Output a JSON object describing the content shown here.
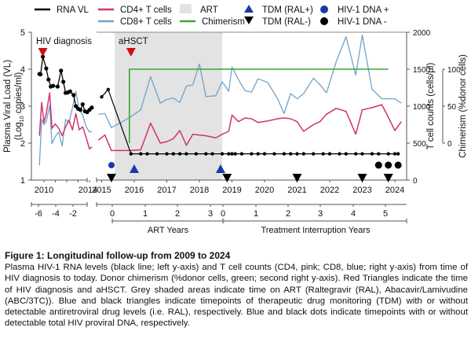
{
  "chart_data": {
    "type": "line",
    "title": "",
    "legend": {
      "placement": "top",
      "items": [
        {
          "label": "RNA VL",
          "kind": "line",
          "color": "#000000"
        },
        {
          "label": "CD4+ T cells",
          "kind": "line",
          "color": "#d0336f"
        },
        {
          "label": "ART",
          "kind": "patch",
          "color": "#e3e3e3"
        },
        {
          "label": "TDM (RAL+)",
          "kind": "triangle-up",
          "color": "#1a3aa8"
        },
        {
          "label": "HIV-1 DNA +",
          "kind": "dot",
          "color": "#1a3aa8"
        },
        {
          "label": "CD8+ T cells",
          "kind": "line",
          "color": "#6fa3c9"
        },
        {
          "label": "Chimerism",
          "kind": "line",
          "color": "#3aa535"
        },
        {
          "label": "TDM (RAL-)",
          "kind": "triangle-down",
          "color": "#000000"
        },
        {
          "label": "HIV-1 DNA -",
          "kind": "dot",
          "color": "#000000"
        }
      ]
    },
    "axes": {
      "left": {
        "label": "Plasma Viral Load (VL)",
        "label2": "(Log",
        "label2_sub": "10",
        "label2_end": " copies/ml)",
        "range": [
          1,
          5
        ],
        "ticks": [
          "1",
          "2",
          "3",
          "4",
          "5"
        ]
      },
      "right1": {
        "label": "T cell counts (cells/µl)",
        "range": [
          0,
          2000
        ],
        "ticks": [
          "0",
          "500",
          "1000",
          "1500",
          "2000"
        ]
      },
      "right2": {
        "label": "Chimerism (%donor cells)",
        "range": [
          0,
          100
        ],
        "ticks": [
          "0",
          "50",
          "100"
        ]
      },
      "x_years_left": {
        "ticks": [
          "2010",
          "2014"
        ]
      },
      "x_years_main": {
        "ticks": [
          "2015",
          "2016",
          "2017",
          "2018",
          "2019",
          "2020",
          "2021",
          "2022",
          "2023",
          "2024"
        ]
      },
      "x_rel_left": {
        "ticks": [
          "-6",
          "-4",
          "-2"
        ]
      },
      "x_art": {
        "label": "ART Years",
        "ticks": [
          "0",
          "1",
          "2",
          "3"
        ]
      },
      "x_ti": {
        "label": "Treatment Interruption Years",
        "ticks": [
          "0",
          "1",
          "2",
          "3",
          "4",
          "5"
        ]
      }
    },
    "annotations": [
      {
        "text": "HIV diagnosis",
        "year": 2009.9
      },
      {
        "text": "aHSCT",
        "year": 2015.9
      }
    ],
    "art_period": {
      "start": 2015.4,
      "end": 2018.7
    },
    "left_panel": {
      "rna_vl": {
        "x": [
          2009.6,
          2009.7,
          2009.9,
          2010.2,
          2010.4,
          2010.6,
          2010.8,
          2011.2,
          2011.5,
          2011.7,
          2011.9,
          2012.1,
          2012.3,
          2012.6,
          2012.8,
          2013.0,
          2013.2,
          2013.4,
          2013.6,
          2013.8,
          2014.0,
          2014.2
        ],
        "y": [
          3.87,
          3.86,
          4.34,
          4.02,
          3.72,
          3.53,
          3.55,
          3.53,
          3.96,
          3.66,
          3.36,
          3.37,
          3.4,
          3.3,
          3.0,
          2.93,
          2.9,
          3.05,
          2.86,
          2.84,
          2.9,
          2.96
        ]
      },
      "cd4": {
        "x": [
          2009.6,
          2009.8,
          2010.0,
          2010.2,
          2010.5,
          2010.7,
          2011.0,
          2011.3,
          2011.6,
          2011.9,
          2012.2,
          2012.5,
          2012.8,
          2013.1,
          2013.4,
          2013.7,
          2014.0,
          2014.2
        ],
        "y": [
          600,
          1050,
          780,
          900,
          1180,
          700,
          760,
          700,
          600,
          720,
          810,
          680,
          900,
          680,
          720,
          580,
          420,
          450
        ]
      },
      "cd8": {
        "x": [
          2009.6,
          2009.8,
          2010.0,
          2010.2,
          2010.5,
          2010.7,
          2011.0,
          2011.3,
          2011.6,
          2011.9,
          2012.2,
          2012.5,
          2012.8,
          2013.1,
          2013.4,
          2013.7,
          2014.0,
          2014.2
        ],
        "y": [
          200,
          820,
          750,
          790,
          1010,
          490,
          590,
          650,
          460,
          820,
          780,
          980,
          1200,
          950,
          880,
          720,
          650,
          660
        ]
      }
    },
    "main_panel": {
      "rna_vl": {
        "x": [
          2015.0,
          2015.2,
          2015.9,
          2016.2,
          2016.4,
          2016.7,
          2017.0,
          2017.2,
          2017.4,
          2017.6,
          2017.9,
          2018.2,
          2018.4,
          2018.7,
          2018.9,
          2019.0,
          2019.1,
          2019.3,
          2019.6,
          2019.8,
          2020.0,
          2020.3,
          2020.6,
          2020.8,
          2021.0,
          2021.2,
          2021.5,
          2021.8,
          2022.0,
          2022.3,
          2022.5,
          2022.8,
          2023.0,
          2023.3,
          2023.5,
          2023.8,
          2024.0,
          2024.1
        ],
        "y": [
          3.25,
          3.45,
          1.71,
          1.71,
          1.71,
          1.71,
          1.71,
          1.71,
          1.71,
          1.71,
          1.71,
          1.71,
          1.71,
          1.71,
          1.71,
          1.71,
          1.71,
          1.71,
          1.71,
          1.71,
          1.71,
          1.71,
          1.71,
          1.71,
          1.71,
          1.71,
          1.71,
          1.71,
          1.71,
          1.71,
          1.71,
          1.71,
          1.71,
          1.71,
          1.71,
          1.71,
          1.71,
          1.71
        ],
        "below_detection_from": 2
      }
    },
    "cd4": {
      "x": [
        2014.9,
        2015.1,
        2015.3,
        2015.6,
        2015.9,
        2016.2,
        2016.5,
        2016.8,
        2017.0,
        2017.2,
        2017.4,
        2017.6,
        2017.8,
        2018.0,
        2018.2,
        2018.5,
        2018.7,
        2018.9,
        2019.0,
        2019.2,
        2019.4,
        2019.6,
        2019.8,
        2020.1,
        2020.4,
        2020.6,
        2020.8,
        2021.0,
        2021.2,
        2021.5,
        2021.7,
        2021.9,
        2022.2,
        2022.5,
        2022.8,
        2023.0,
        2023.3,
        2023.6,
        2023.8,
        2024.0,
        2024.2
      ],
      "y": [
        540,
        610,
        400,
        400,
        400,
        410,
        770,
        500,
        520,
        560,
        670,
        470,
        620,
        610,
        600,
        570,
        620,
        660,
        880,
        790,
        840,
        830,
        780,
        800,
        830,
        840,
        830,
        790,
        660,
        750,
        790,
        890,
        970,
        930,
        620,
        950,
        980,
        1020,
        850,
        670,
        790
      ]
    },
    "cd8": {
      "x": [
        2014.9,
        2015.1,
        2015.3,
        2015.6,
        2015.9,
        2016.2,
        2016.5,
        2016.8,
        2017.0,
        2017.2,
        2017.4,
        2017.6,
        2017.8,
        2018.0,
        2018.2,
        2018.5,
        2018.7,
        2018.9,
        2019.0,
        2019.2,
        2019.4,
        2019.6,
        2019.8,
        2020.1,
        2020.4,
        2020.6,
        2020.8,
        2021.0,
        2021.2,
        2021.5,
        2021.7,
        2021.9,
        2022.2,
        2022.5,
        2022.8,
        2023.0,
        2023.3,
        2023.6,
        2023.8,
        2024.0,
        2024.2
      ],
      "y": [
        890,
        900,
        710,
        780,
        860,
        950,
        1400,
        1040,
        1090,
        1110,
        1050,
        1270,
        1290,
        1570,
        1130,
        1140,
        1330,
        1200,
        1530,
        1360,
        1210,
        1190,
        1370,
        1320,
        1100,
        900,
        1170,
        1100,
        1170,
        1380,
        1290,
        1180,
        1600,
        1940,
        1420,
        1960,
        1230,
        1100,
        1100,
        1100,
        1040
      ]
    },
    "chimerism": {
      "x": [
        2015.85,
        2015.85,
        2015.86,
        2023.8
      ],
      "y": [
        0,
        100,
        100,
        100
      ]
    },
    "tdm_ral_pos": [
      2016.0,
      2018.65
    ],
    "tdm_ral_neg": [
      2015.3,
      2018.85,
      2021.0,
      2023.0,
      2023.8
    ],
    "hiv_dna_pos": [
      2015.3
    ],
    "hiv_dna_neg": [
      2023.5,
      2023.8,
      2024.1
    ],
    "red_triangles": [
      2009.9,
      2015.9
    ]
  },
  "caption": {
    "title": "Figure 1: Longitudinal follow-up from 2009 to 2024",
    "body": "Plasma HIV-1 RNA levels (black line; left y-axis) and T cell counts (CD4, pink; CD8, blue; right y-axis) from time of HIV diagnosis to today. Donor chimerism (%donor cells, green; second right y-axis). Red Triangles indicate the time of HIV diagnosis and aHSCT. Grey shaded areas indicate time on ART (Raltegravir (RAL), Abacavir/Lamivudine (ABC/3TC)). Blue and black triangles indicate timepoints of therapeutic drug monitoring (TDM) with or without detectable antiretroviral drug levels (i.e. RAL), respectively. Blue and black dots indicate timepoints with or without detectable total HIV proviral DNA, respectively."
  }
}
